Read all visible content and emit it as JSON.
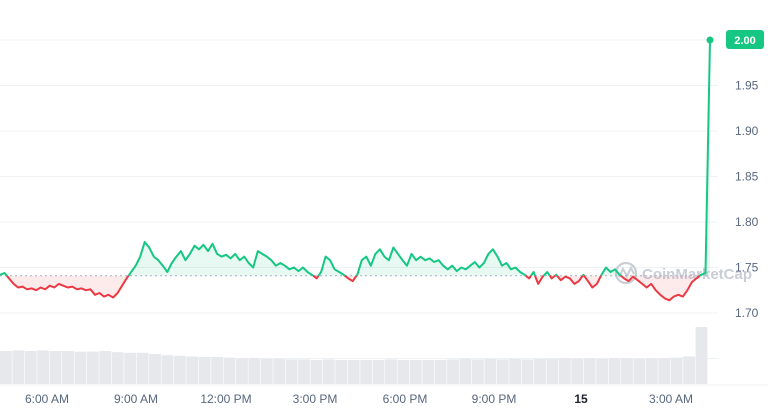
{
  "chart_data": {
    "type": "line",
    "title": "",
    "xlabel": "",
    "ylabel": "",
    "watermark": "CoinMarketCap",
    "ylim": [
      1.625,
      2.05
    ],
    "yticks": [
      "1.70",
      "1.75",
      "1.80",
      "1.85",
      "1.90",
      "1.95"
    ],
    "xticks": [
      "6:00 AM",
      "9:00 AM",
      "12:00 PM",
      "3:00 PM",
      "6:00 PM",
      "9:00 PM",
      "15",
      "3:00 AM"
    ],
    "baseline": 1.741,
    "last_value_label": "2.00",
    "colors": {
      "up": "#16c784",
      "down": "#ea3943",
      "badge": "#16c784",
      "baseline": "#a6b0c3"
    },
    "series": [
      {
        "values": [
          1.742,
          1.744,
          1.738,
          1.732,
          1.728,
          1.729,
          1.726,
          1.727,
          1.725,
          1.728,
          1.726,
          1.73,
          1.728,
          1.732,
          1.73,
          1.728,
          1.729,
          1.726,
          1.727,
          1.725,
          1.726,
          1.72,
          1.722,
          1.718,
          1.72,
          1.717,
          1.722,
          1.73,
          1.738,
          1.745,
          1.752,
          1.762,
          1.778,
          1.772,
          1.762,
          1.758,
          1.752,
          1.745,
          1.755,
          1.762,
          1.768,
          1.758,
          1.765,
          1.774,
          1.77,
          1.775,
          1.768,
          1.776,
          1.765,
          1.762,
          1.764,
          1.76,
          1.765,
          1.758,
          1.762,
          1.755,
          1.75,
          1.768,
          1.765,
          1.762,
          1.758,
          1.752,
          1.755,
          1.752,
          1.748,
          1.75,
          1.746,
          1.75,
          1.745,
          1.742,
          1.738,
          1.745,
          1.762,
          1.758,
          1.748,
          1.745,
          1.742,
          1.738,
          1.735,
          1.742,
          1.758,
          1.762,
          1.752,
          1.765,
          1.77,
          1.762,
          1.758,
          1.772,
          1.765,
          1.758,
          1.752,
          1.765,
          1.758,
          1.762,
          1.758,
          1.76,
          1.756,
          1.758,
          1.752,
          1.748,
          1.752,
          1.746,
          1.75,
          1.748,
          1.752,
          1.756,
          1.75,
          1.755,
          1.765,
          1.77,
          1.762,
          1.752,
          1.755,
          1.748,
          1.75,
          1.745,
          1.742,
          1.738,
          1.745,
          1.732,
          1.74,
          1.745,
          1.738,
          1.742,
          1.736,
          1.74,
          1.738,
          1.732,
          1.735,
          1.742,
          1.735,
          1.728,
          1.732,
          1.742,
          1.75,
          1.745,
          1.748,
          1.742,
          1.738,
          1.735,
          1.74,
          1.736,
          1.732,
          1.728,
          1.732,
          1.725,
          1.72,
          1.716,
          1.714,
          1.718,
          1.72,
          1.718,
          1.725,
          1.734,
          1.738,
          1.742,
          1.744,
          2.0
        ]
      }
    ],
    "volume": {
      "note": "volume bars, relative scale 0-1",
      "values": [
        0.55,
        0.56,
        0.55,
        0.56,
        0.55,
        0.55,
        0.54,
        0.54,
        0.55,
        0.53,
        0.52,
        0.52,
        0.5,
        0.48,
        0.47,
        0.46,
        0.45,
        0.45,
        0.44,
        0.43,
        0.43,
        0.42,
        0.42,
        0.41,
        0.41,
        0.4,
        0.41,
        0.4,
        0.4,
        0.4,
        0.4,
        0.41,
        0.4,
        0.4,
        0.4,
        0.4,
        0.41,
        0.42,
        0.41,
        0.42,
        0.41,
        0.42,
        0.41,
        0.42,
        0.42,
        0.43,
        0.42,
        0.43,
        0.42,
        0.43,
        0.43,
        0.42,
        0.43,
        0.43,
        0.44,
        0.46,
        0.95
      ]
    }
  }
}
